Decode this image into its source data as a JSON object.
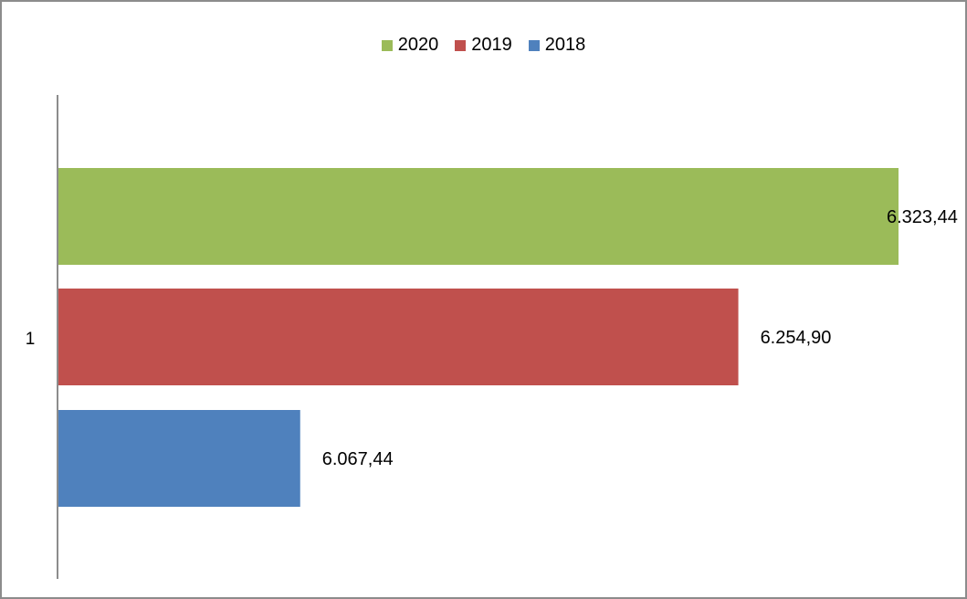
{
  "chart_data": {
    "type": "bar",
    "orientation": "horizontal",
    "categories": [
      "1"
    ],
    "series": [
      {
        "name": "2020",
        "values": [
          6323.44
        ],
        "label": "6.323,44",
        "color": "#9BBB59"
      },
      {
        "name": "2019",
        "values": [
          6254.9
        ],
        "label": "6.254,90",
        "color": "#C0504D"
      },
      {
        "name": "2018",
        "values": [
          6067.44
        ],
        "label": "6.067,44",
        "color": "#4F81BD"
      }
    ],
    "legend_position": "top",
    "grid": false,
    "axis_color": "#8c8c8c"
  }
}
